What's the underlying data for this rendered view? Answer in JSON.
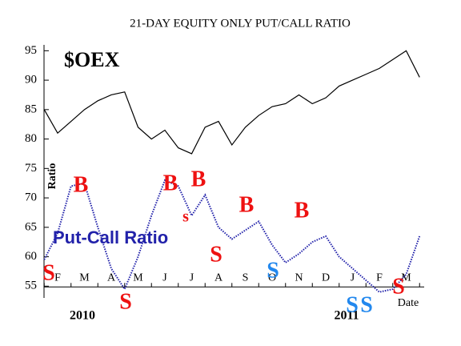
{
  "chart_data": {
    "type": "line",
    "title": "21-DAY EQUITY ONLY PUT/CALL RATIO",
    "y_label": "Ratio",
    "x_label": "Date",
    "years": [
      "2010",
      "2011"
    ],
    "categories": [
      null,
      "F",
      null,
      "M",
      null,
      "A",
      null,
      "M",
      null,
      "J",
      null,
      "J",
      null,
      "A",
      null,
      "S",
      null,
      "O",
      null,
      "N",
      null,
      "D",
      null,
      "J",
      null,
      "F",
      null,
      "M",
      null
    ],
    "series": [
      {
        "name": "$OEX",
        "color": "#000000",
        "style": "solid",
        "values": [
          85,
          81,
          83,
          85,
          86.5,
          87.5,
          88,
          82,
          80,
          81.5,
          78.5,
          77.5,
          82,
          83,
          79,
          82,
          84,
          85.5,
          86,
          87.5,
          86,
          87,
          89,
          90,
          91,
          92,
          93.5,
          95,
          90.5
        ]
      },
      {
        "name": "Put-Call Ratio",
        "color": "#2222aa",
        "style": "dotted",
        "values": [
          59.5,
          64,
          72,
          72.5,
          65,
          58,
          54.5,
          60,
          67,
          73,
          72,
          67,
          70.5,
          65,
          63,
          64.5,
          66,
          62,
          59,
          60.5,
          62.5,
          63.5,
          60,
          58,
          56,
          54,
          54.5,
          57,
          63.5
        ]
      }
    ],
    "annotations": [
      {
        "text": "B",
        "color": "#ee1111"
      },
      {
        "text": "B",
        "color": "#ee1111"
      },
      {
        "text": "B",
        "color": "#ee1111"
      },
      {
        "text": "s",
        "color": "#ee1111"
      },
      {
        "text": "B",
        "color": "#ee1111"
      },
      {
        "text": "B",
        "color": "#ee1111"
      },
      {
        "text": "S",
        "color": "#ee1111"
      },
      {
        "text": "S",
        "color": "#ee1111"
      },
      {
        "text": "S",
        "color": "#ee1111"
      },
      {
        "text": "S",
        "color": "#2288ee"
      },
      {
        "text": "S",
        "color": "#2288ee"
      },
      {
        "text": "S",
        "color": "#2288ee"
      },
      {
        "text": "S",
        "color": "#ee1111"
      }
    ],
    "ylim": [
      53,
      96
    ],
    "yticks": [
      55,
      60,
      65,
      70,
      75,
      80,
      85,
      90,
      95
    ]
  }
}
